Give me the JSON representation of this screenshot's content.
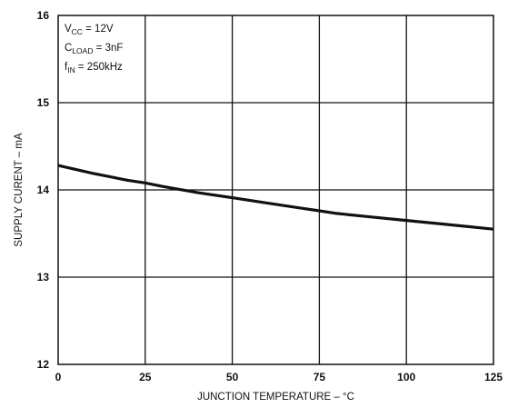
{
  "chart_data": {
    "type": "line",
    "title": "",
    "xlabel": "JUNCTION TEMPERATURE – °C",
    "ylabel": "SUPPLY CURENT – mA",
    "xlim": [
      0,
      125
    ],
    "ylim": [
      12,
      16
    ],
    "x_ticks": [
      0,
      25,
      50,
      75,
      100,
      125
    ],
    "y_ticks": [
      12,
      13,
      14,
      15,
      16
    ],
    "x_tick_labels": [
      "0",
      "25",
      "50",
      "75",
      "100",
      "125"
    ],
    "y_tick_labels": [
      "12",
      "13",
      "14",
      "15",
      "16"
    ],
    "grid": true,
    "conditions": [
      {
        "main": "V",
        "sub": "CC",
        "rest": " = 12V"
      },
      {
        "main": "C",
        "sub": "LOAD",
        "rest": " = 3nF"
      },
      {
        "main": "f",
        "sub": "IN",
        "rest": " = 250kHz"
      }
    ],
    "series": [
      {
        "x": [
          0,
          10,
          20,
          25,
          30,
          40,
          50,
          60,
          70,
          75,
          80,
          90,
          100,
          110,
          125
        ],
        "y": [
          14.28,
          14.19,
          14.11,
          14.08,
          14.04,
          13.97,
          13.91,
          13.85,
          13.79,
          13.76,
          13.73,
          13.69,
          13.65,
          13.61,
          13.55
        ]
      }
    ],
    "colors": {
      "line": "#111111",
      "grid": "#111111",
      "background": "#ffffff"
    }
  }
}
